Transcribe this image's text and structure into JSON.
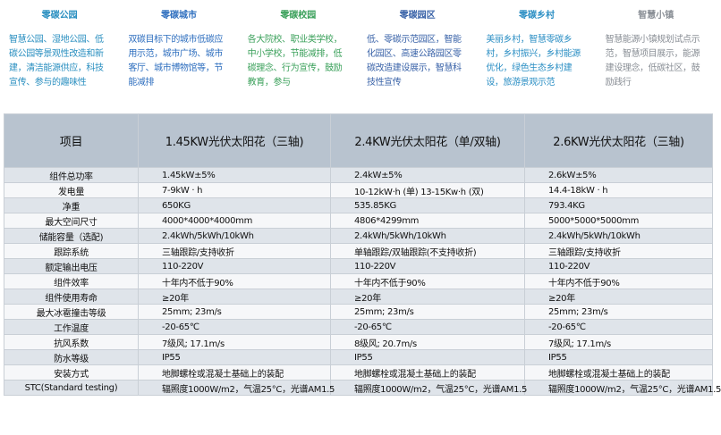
{
  "scenarios": [
    {
      "title": "零碳公园",
      "desc": "智慧公园、湿地公园、低碳公园等景观性改造和新建，清洁能源供应，科技宣传、参与的趣味性",
      "color": "#2a8fc0"
    },
    {
      "title": "零碳城市",
      "desc": "双碳目标下的城市低碳应用示范，城市广场、城市客厅、城市博物馆等，节能减排",
      "color": "#2f6fbf"
    },
    {
      "title": "零碳校园",
      "desc": "各大院校、职业类学校，中小学校，节能减排，低碳理念、行为宣传，鼓励教育，参与",
      "color": "#3aa05a"
    },
    {
      "title": "零碳园区",
      "desc": "低、零碳示范园区，智能化园区、高速公路园区零碳改造建设展示，智慧科技性宣传",
      "color": "#3a63a8"
    },
    {
      "title": "零碳乡村",
      "desc": "美丽乡村，智慧零碳乡村，乡村振兴，乡村能源优化，绿色生态乡村建设，旅游景观示范",
      "color": "#2c8fc4"
    },
    {
      "title": "智慧小镇",
      "desc": "智慧能源小镇规划试点示范，智慧项目展示，能源建设理念，低碳社区，鼓励践行",
      "color": "#8a8f96"
    }
  ],
  "table": {
    "headers": [
      "项目",
      "1.45KW光伏太阳花（三轴)",
      "2.4KW光伏太阳花（单/双轴)",
      "2.6KW光伏太阳花（三轴)"
    ],
    "rows": [
      [
        "组件总功率",
        "1.45kW±5%",
        "2.4kW±5%",
        "2.6kW±5%"
      ],
      [
        "发电量",
        "7-9kW · h",
        "10-12kW·h (单) 13-15Kw·h (双)",
        "14.4-18kW · h"
      ],
      [
        "净重",
        "650KG",
        "535.85KG",
        "793.4KG"
      ],
      [
        "最大空间尺寸",
        "4000*4000*4000mm",
        "4806*4299mm",
        "5000*5000*5000mm"
      ],
      [
        "储能容量（选配)",
        "2.4kWh/5kWh/10kWh",
        "2.4kWh/5kWh/10kWh",
        "2.4kWh/5kWh/10kWh"
      ],
      [
        "跟踪系统",
        "三轴跟踪/支持收折",
        "单轴跟踪/双轴跟踪(不支持收折)",
        "三轴跟踪/支持收折"
      ],
      [
        "额定输出电压",
        "110-220V",
        "110-220V",
        "110-220V"
      ],
      [
        "组件效率",
        "十年内不低于90%",
        "十年内不低于90%",
        "十年内不低于90%"
      ],
      [
        "组件使用寿命",
        "≥20年",
        "≥20年",
        "≥20年"
      ],
      [
        "最大冰雹撞击等级",
        "25mm; 23m/s",
        "25mm; 23m/s",
        "25mm; 23m/s"
      ],
      [
        "工作温度",
        "-20-65℃",
        "-20-65℃",
        "-20-65℃"
      ],
      [
        "抗风系数",
        "7级风; 17.1m/s",
        "8级风; 20.7m/s",
        "7级风; 17.1m/s"
      ],
      [
        "防水等级",
        "IP55",
        "IP55",
        "IP55"
      ],
      [
        "安装方式",
        "地脚螺栓或混凝土基础上的装配",
        "地脚螺栓或混凝土基础上的装配",
        "地脚螺栓或混凝土基础上的装配"
      ],
      [
        "STC(Standard testing)",
        "辐照度1000W/m2，气温25°C，光谱AM1.5",
        "辐照度1000W/m2，气温25°C，光谱AM1.5",
        "辐照度1000W/m2，气温25°C，光谱AM1.5"
      ]
    ]
  }
}
